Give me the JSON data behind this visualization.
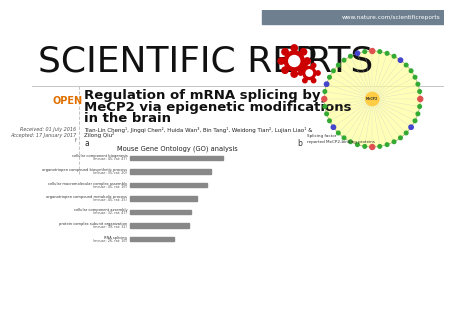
{
  "bg_color": "#ffffff",
  "header_bar_color": "#6e8090",
  "header_text": "www.nature.com/scientificreports",
  "header_text_color": "#ffffff",
  "gear_color": "#cc0000",
  "open_label": "OPEN",
  "open_color": "#e07000",
  "article_title_line1": "Regulation of mRNA splicing by",
  "article_title_line2": "MeCP2 via epigenetic modifications",
  "article_title_line3": "in the brain",
  "title_color": "#111111",
  "received_text": "Received: 01 July 2016",
  "accepted_text": "Accepted: 17 January 2017",
  "authors_line1": "Tian-Lin Cheng¹, Jingqi Chen², Huida Wan³, Bin Tang¹, Weidong Tian², Lujian Liao¹ &",
  "authors_line2": "Zilong Qiu²",
  "go_title": "Mouse Gene Ontology (GO) analysis",
  "go_categories": [
    "cellular component biogenesis\n(mouse: 45; rat: 47)",
    "organotriopen compound biosynthetic process\n(mouse: 35; rat: 20)",
    "cellular macromolecular complex assembly\n(mouse: 45; rat: 16)",
    "organotriopen compound metabolic process\n(mouse: 45; rat: 25)",
    "cellular component assembly\n(mouse: 32; rat: 47)",
    "protein complex subunit organization\n(mouse: 39; rat: 32)",
    "RNA splicing\n(mouse: 26; rat: 16)"
  ],
  "go_values": [
    0.95,
    0.82,
    0.78,
    0.68,
    0.62,
    0.6,
    0.45
  ],
  "bar_color": "#888888",
  "divider_color": "#bbbbbb",
  "splicing_factor_color": "#e05050",
  "mecp2_binding_color": "#4444cc",
  "network_center_color": "#ffff99",
  "network_ring_color": "#33aa33",
  "panel_a_label": "a",
  "panel_b_label": "b"
}
